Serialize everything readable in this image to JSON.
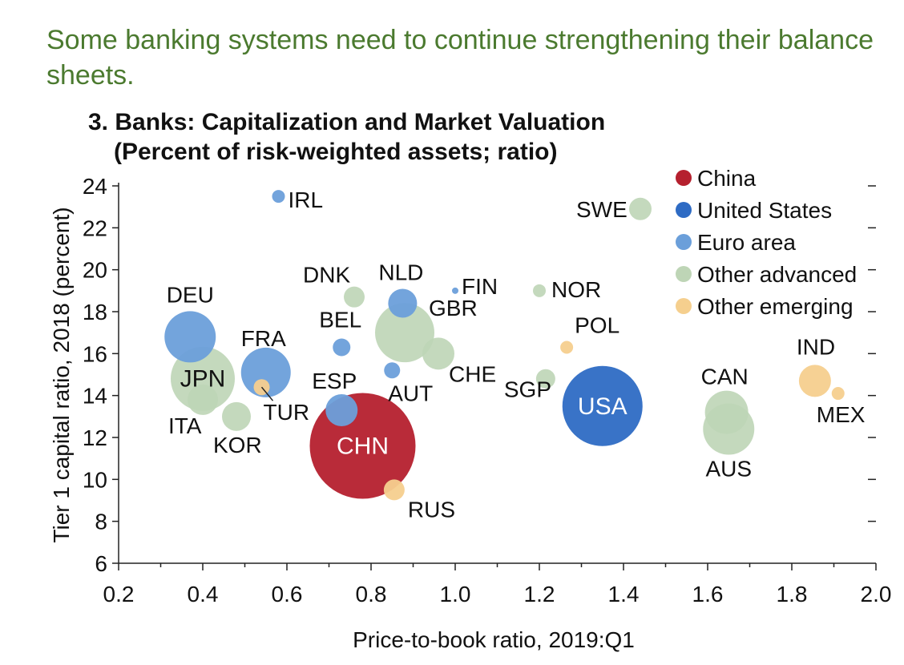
{
  "headline": "Some banking systems need to continue strengthening their balance sheets.",
  "chart_data": {
    "type": "scatter",
    "title_line1": "3. Banks: Capitalization and Market Valuation",
    "title_line2": "(Percent of risk-weighted assets; ratio)",
    "xlabel": "Price-to-book ratio, 2019:Q1",
    "ylabel": "Tier 1 capital ratio, 2018 (percent)",
    "xlim": [
      0.2,
      2.0
    ],
    "ylim": [
      6,
      24
    ],
    "xticks": [
      "0.2",
      "0.4",
      "0.6",
      "0.8",
      "1.0",
      "1.2",
      "1.4",
      "1.6",
      "1.8",
      "2.0"
    ],
    "yticks": [
      "6",
      "8",
      "10",
      "12",
      "14",
      "16",
      "18",
      "20",
      "22",
      "24"
    ],
    "legend": {
      "placement": "top-right",
      "entries": [
        {
          "key": "china",
          "label": "China",
          "color": "#b5202e"
        },
        {
          "key": "us",
          "label": "United States",
          "color": "#2e6bc4"
        },
        {
          "key": "euro",
          "label": "Euro area",
          "color": "#6b9fda"
        },
        {
          "key": "adv",
          "label": "Other advanced",
          "color": "#bed5b6"
        },
        {
          "key": "em",
          "label": "Other emerging",
          "color": "#f5cf8e"
        }
      ]
    },
    "points": [
      {
        "label": "CHN",
        "group": "china",
        "x": 0.78,
        "y": 11.6,
        "size": 66,
        "label_inside": true
      },
      {
        "label": "USA",
        "group": "us",
        "x": 1.35,
        "y": 13.5,
        "size": 50,
        "label_inside": true
      },
      {
        "label": "JPN",
        "group": "adv",
        "x": 0.4,
        "y": 14.8,
        "size": 40,
        "label_inside": true
      },
      {
        "label": "GBR",
        "group": "adv",
        "x": 0.88,
        "y": 17.0,
        "size": 37
      },
      {
        "label": "AUS",
        "group": "adv",
        "x": 1.65,
        "y": 12.4,
        "size": 32
      },
      {
        "label": "DEU",
        "group": "euro",
        "x": 0.37,
        "y": 16.8,
        "size": 32
      },
      {
        "label": "FRA",
        "group": "euro",
        "x": 0.55,
        "y": 15.1,
        "size": 31
      },
      {
        "label": "CAN",
        "group": "adv",
        "x": 1.645,
        "y": 13.2,
        "size": 27
      },
      {
        "label": "CHE",
        "group": "adv",
        "x": 0.96,
        "y": 16.0,
        "size": 20
      },
      {
        "label": "ESP",
        "group": "euro",
        "x": 0.73,
        "y": 13.3,
        "size": 20
      },
      {
        "label": "IND",
        "group": "em",
        "x": 1.855,
        "y": 14.7,
        "size": 20
      },
      {
        "label": "ITA",
        "group": "adv",
        "x": 0.4,
        "y": 13.8,
        "size": 19
      },
      {
        "label": "KOR",
        "group": "adv",
        "x": 0.48,
        "y": 13.0,
        "size": 18
      },
      {
        "label": "NLD",
        "group": "euro",
        "x": 0.875,
        "y": 18.4,
        "size": 18
      },
      {
        "label": "SWE",
        "group": "adv",
        "x": 1.44,
        "y": 22.9,
        "size": 14
      },
      {
        "label": "DNK",
        "group": "adv",
        "x": 0.76,
        "y": 18.7,
        "size": 13
      },
      {
        "label": "RUS",
        "group": "em",
        "x": 0.855,
        "y": 9.5,
        "size": 13
      },
      {
        "label": "SGP",
        "group": "adv",
        "x": 1.215,
        "y": 14.8,
        "size": 12
      },
      {
        "label": "BEL",
        "group": "euro",
        "x": 0.73,
        "y": 16.3,
        "size": 11
      },
      {
        "label": "AUT",
        "group": "euro",
        "x": 0.85,
        "y": 15.2,
        "size": 10
      },
      {
        "label": "TUR",
        "group": "em",
        "x": 0.54,
        "y": 14.4,
        "size": 10
      },
      {
        "label": "IRL",
        "group": "euro",
        "x": 0.58,
        "y": 23.5,
        "size": 8
      },
      {
        "label": "NOR",
        "group": "adv",
        "x": 1.2,
        "y": 19.0,
        "size": 8
      },
      {
        "label": "POL",
        "group": "em",
        "x": 1.265,
        "y": 16.3,
        "size": 8
      },
      {
        "label": "MEX",
        "group": "em",
        "x": 1.91,
        "y": 14.1,
        "size": 8
      },
      {
        "label": "FIN",
        "group": "euro",
        "x": 1.0,
        "y": 19.0,
        "size": 4
      }
    ]
  }
}
